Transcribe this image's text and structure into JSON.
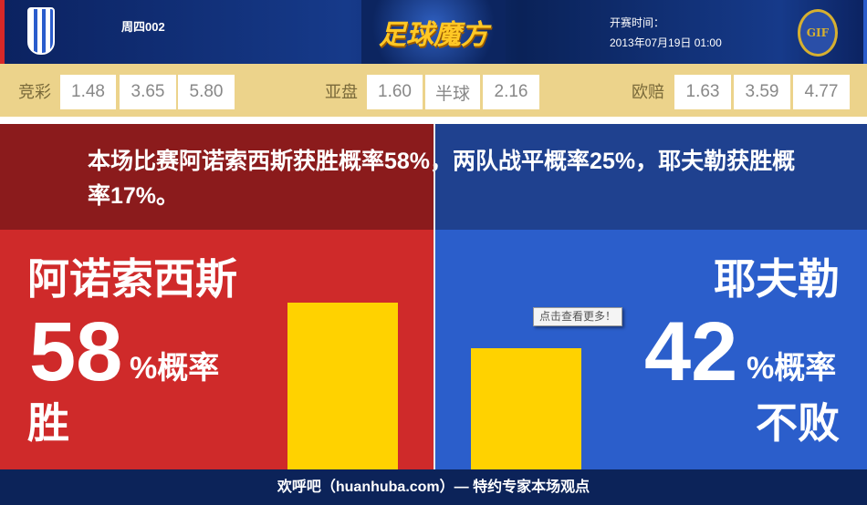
{
  "header": {
    "match_no": "周四002",
    "brand": "足球魔方",
    "kickoff_label": "开赛时间：",
    "kickoff_value": "2013年07月19日 01:00",
    "home_logo_text": "",
    "away_logo_text": "GIF"
  },
  "odds": {
    "jingcai": {
      "label": "竞彩",
      "values": [
        "1.48",
        "3.65",
        "5.80"
      ]
    },
    "yapan": {
      "label": "亚盘",
      "values": [
        "1.60",
        "半球",
        "2.16"
      ]
    },
    "oupei": {
      "label": "欧赔",
      "values": [
        "1.63",
        "3.59",
        "4.77"
      ]
    }
  },
  "message": "本场比赛阿诺索西斯获胜概率58%，两队战平概率25%，耶夫勒获胜概率17%。",
  "home": {
    "name": "阿诺索西斯",
    "percent": "58",
    "percent_label": "%概率",
    "result": "胜",
    "bar_value": 58,
    "color": "#cf2a2a"
  },
  "away": {
    "name": "耶夫勒",
    "percent": "42",
    "percent_label": "%概率",
    "result": "不败",
    "bar_value": 42,
    "color": "#2b5ecb"
  },
  "tooltip": "点击查看更多！",
  "footer": "欢呼吧（huanhuba.com）— 特约专家本场观点"
}
